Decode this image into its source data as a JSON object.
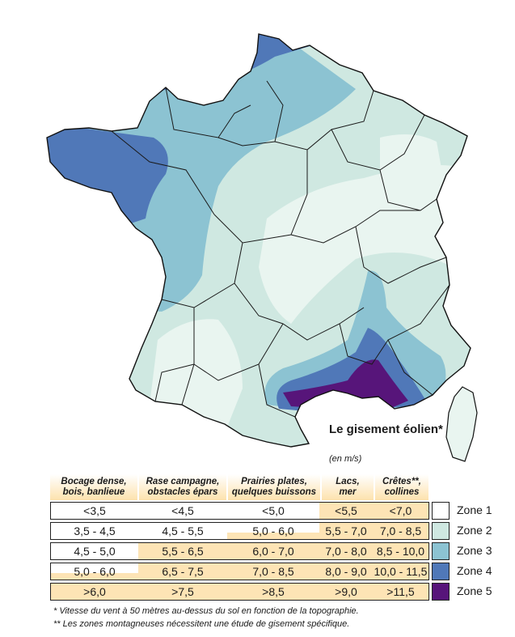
{
  "title": "Le gisement éolien*",
  "unit": "(en m/s)",
  "colors": {
    "zone1": "#ffffff",
    "zone2": "#cfe8e1",
    "zone3": "#8cc3d2",
    "zone4": "#5078b8",
    "zone5": "#57157a",
    "header": "#fde2ad"
  },
  "headers": [
    {
      "line1": "Bocage dense,",
      "line2": "bois, banlieue"
    },
    {
      "line1": "Rase campagne,",
      "line2": "obstacles épars"
    },
    {
      "line1": "Prairies plates,",
      "line2": "quelques buissons"
    },
    {
      "line1": "Lacs,",
      "line2": "mer"
    },
    {
      "line1": "Crêtes**,",
      "line2": "collines"
    }
  ],
  "rows": [
    {
      "zone": "Zone 1",
      "values": [
        "<3,5",
        "<4,5",
        "<5,0",
        "<5,5",
        "<7,0"
      ]
    },
    {
      "zone": "Zone 2",
      "values": [
        "3,5 - 4,5",
        "4,5 - 5,5",
        "5,0 - 6,0",
        "5,5 - 7,0",
        "7,0 - 8,5"
      ]
    },
    {
      "zone": "Zone 3",
      "values": [
        "4,5 - 5,0",
        "5,5 - 6,5",
        "6,0 - 7,0",
        "7,0 - 8,0",
        "8,5 - 10,0"
      ]
    },
    {
      "zone": "Zone 4",
      "values": [
        "5,0 - 6,0",
        "6,5 - 7,5",
        "7,0 - 8,5",
        "8,0 - 9,0",
        "10,0 - 11,5"
      ]
    },
    {
      "zone": "Zone 5",
      "values": [
        ">6,0",
        ">7,5",
        ">8,5",
        ">9,0",
        ">11,5"
      ]
    }
  ],
  "notes": [
    "* Vitesse du vent à 50 mètres au-dessus du sol en fonction de la topographie.",
    "** Les zones montagneuses nécessitent une étude de gisement spécifique."
  ]
}
